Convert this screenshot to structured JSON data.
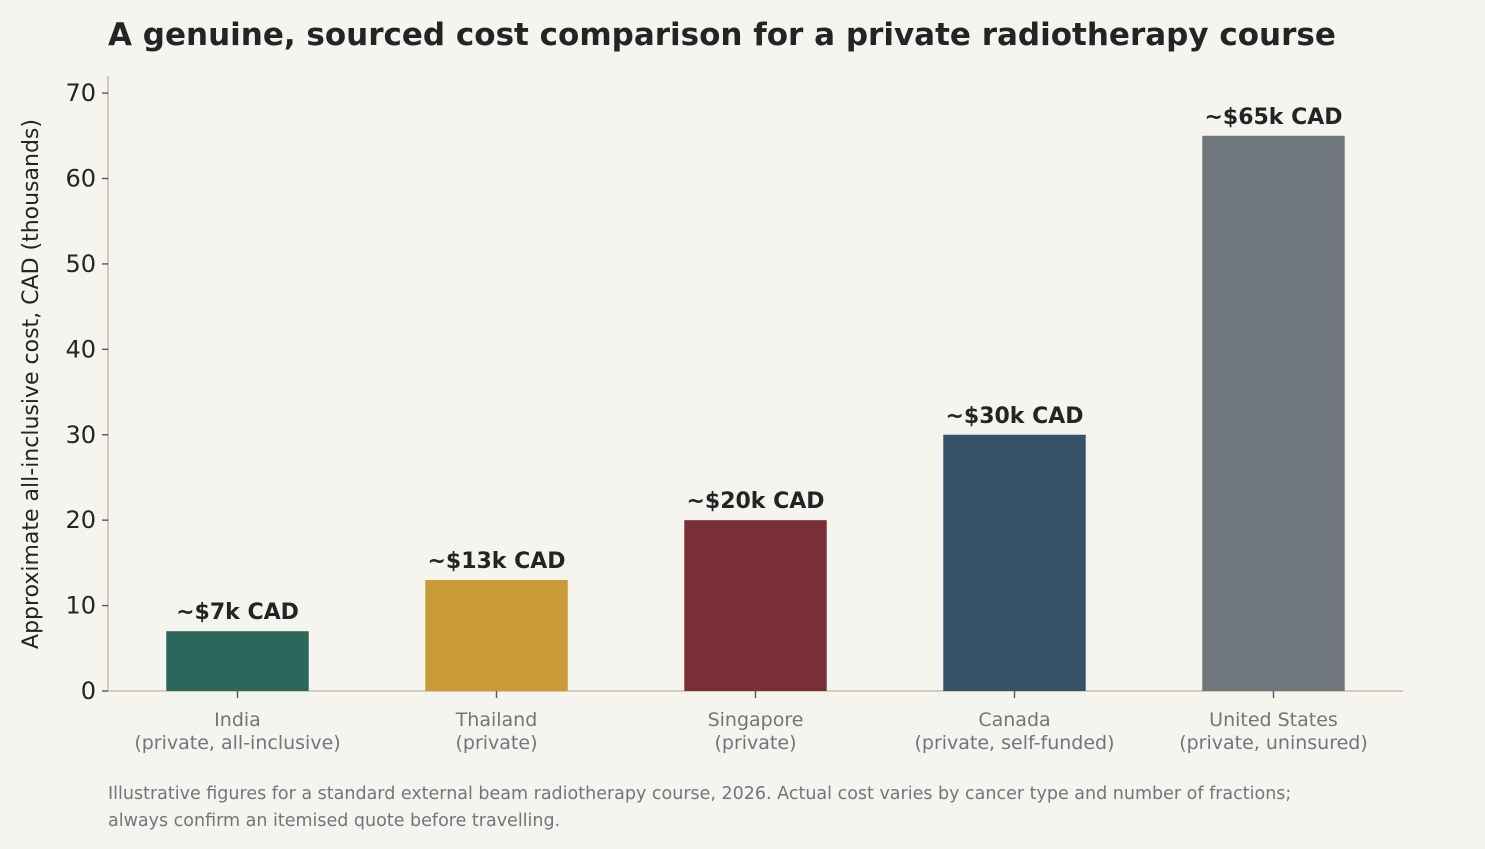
{
  "chart_data": {
    "type": "bar",
    "title": "A genuine, sourced cost comparison for a private radiotherapy course",
    "xlabel": "",
    "ylabel": "Approximate all-inclusive cost, CAD (thousands)",
    "ylim": [
      0,
      72
    ],
    "yticks": [
      "0",
      "10",
      "20",
      "30",
      "40",
      "50",
      "60",
      "70"
    ],
    "grid": false,
    "categories": [
      [
        "India",
        "(private, all-inclusive)"
      ],
      [
        "Thailand",
        "(private)"
      ],
      [
        "Singapore",
        "(private)"
      ],
      [
        "Canada",
        "(private, self-funded)"
      ],
      [
        "United States",
        "(private, uninsured)"
      ]
    ],
    "values": [
      7,
      13,
      20,
      30,
      65
    ],
    "data_labels": [
      "~$7k CAD",
      "~$13k CAD",
      "~$20k CAD",
      "~$30k CAD",
      "~$65k CAD"
    ],
    "colors": [
      "#2b675a",
      "#c99a38",
      "#782f38",
      "#345268",
      "#6f767d"
    ],
    "footnote": [
      "Illustrative figures for a standard external beam radiotherapy course, 2026. Actual cost varies by cancer type and number of fractions;",
      "always confirm an itemised quote before travelling."
    ]
  }
}
